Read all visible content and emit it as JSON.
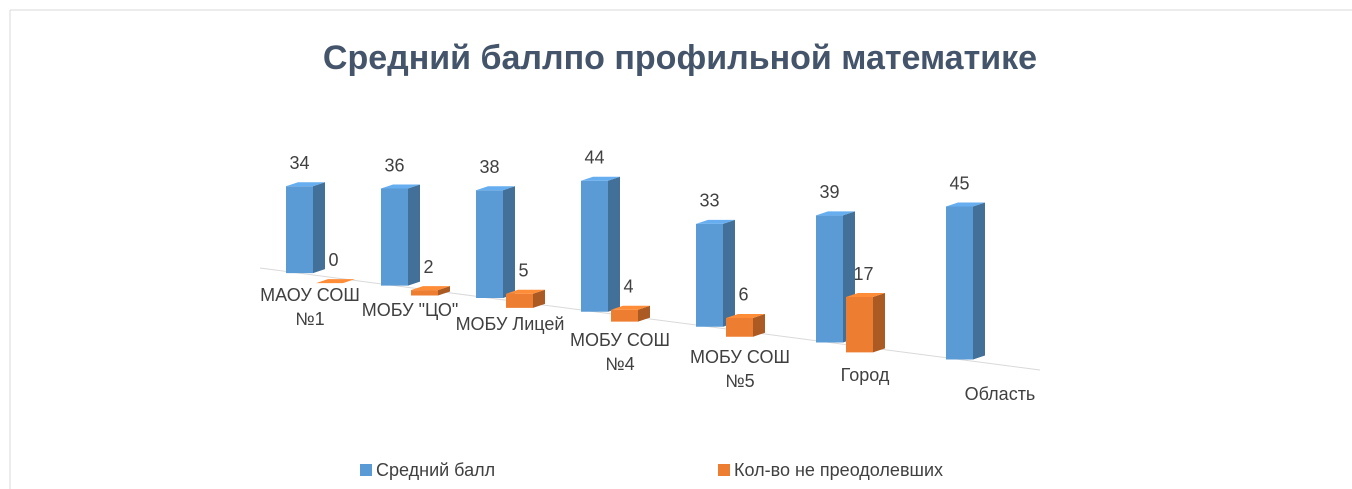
{
  "chart_data": {
    "type": "bar3d",
    "title": "Средний баллпо профильной математике",
    "categories": [
      "МАОУ СОШ №1",
      "МОБУ \"ЦО\"",
      "МОБУ Лицей",
      "МОБУ СОШ №4",
      "МОБУ СОШ №5",
      "Город",
      "Область"
    ],
    "series": [
      {
        "name": "Средний балл",
        "color": "#5b9bd5",
        "values": [
          34,
          36,
          38,
          44,
          33,
          39,
          45
        ]
      },
      {
        "name": "Кол-во не преодолевших",
        "color": "#ed7d31",
        "values": [
          0,
          2,
          5,
          4,
          6,
          17,
          null
        ]
      }
    ],
    "legend": "bottom"
  }
}
